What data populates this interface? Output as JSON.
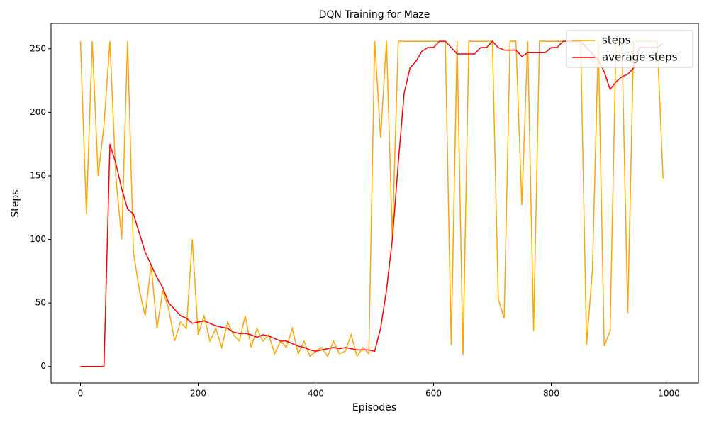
{
  "chart_data": {
    "type": "line",
    "title": "DQN Training for Maze",
    "x_label": "Episodes",
    "y_label": "Steps",
    "x": [
      0,
      10,
      20,
      30,
      40,
      50,
      60,
      70,
      80,
      90,
      100,
      110,
      120,
      130,
      140,
      150,
      160,
      170,
      180,
      190,
      200,
      210,
      220,
      230,
      240,
      250,
      260,
      270,
      280,
      290,
      300,
      310,
      320,
      330,
      340,
      350,
      360,
      370,
      380,
      390,
      400,
      410,
      420,
      430,
      440,
      450,
      460,
      470,
      480,
      490,
      500,
      510,
      520,
      530,
      540,
      550,
      560,
      570,
      580,
      590,
      600,
      610,
      620,
      630,
      640,
      650,
      660,
      670,
      680,
      690,
      700,
      710,
      720,
      730,
      740,
      750,
      760,
      770,
      780,
      790,
      800,
      810,
      820,
      830,
      840,
      850,
      860,
      870,
      880,
      890,
      900,
      910,
      920,
      930,
      940,
      950,
      960,
      970,
      980,
      990
    ],
    "series": [
      {
        "name": "steps",
        "color": "#ffa500",
        "values": [
          256,
          120,
          256,
          150,
          190,
          256,
          150,
          100,
          256,
          90,
          60,
          40,
          80,
          30,
          60,
          45,
          20,
          35,
          30,
          100,
          25,
          40,
          20,
          30,
          15,
          35,
          25,
          20,
          40,
          15,
          30,
          20,
          25,
          10,
          20,
          15,
          30,
          10,
          20,
          8,
          12,
          15,
          8,
          20,
          10,
          12,
          25,
          8,
          15,
          10,
          256,
          180,
          256,
          100,
          256,
          256,
          256,
          256,
          256,
          256,
          256,
          256,
          256,
          17,
          256,
          9,
          256,
          256,
          256,
          256,
          256,
          53,
          38,
          256,
          256,
          127,
          256,
          28,
          256,
          256,
          256,
          256,
          256,
          256,
          256,
          256,
          17,
          76,
          256,
          16,
          28,
          256,
          256,
          42,
          256,
          256,
          256,
          256,
          256,
          148
        ]
      },
      {
        "name": "average steps",
        "color": "#ff0000",
        "values": [
          0,
          0,
          0,
          0,
          0,
          175,
          160,
          140,
          124,
          120,
          105,
          90,
          80,
          70,
          62,
          50,
          45,
          40,
          38,
          34,
          35,
          36,
          34,
          32,
          31,
          30,
          27,
          26,
          26,
          25,
          23,
          25,
          24,
          22,
          20,
          20,
          18,
          16,
          15,
          13,
          12,
          13,
          14,
          15,
          14,
          15,
          14,
          13,
          13,
          13,
          12,
          30,
          60,
          100,
          160,
          215,
          235,
          240,
          248,
          251,
          251,
          256,
          256,
          251,
          246,
          246,
          246,
          246,
          251,
          251,
          256,
          251,
          249,
          249,
          249,
          244,
          247,
          247,
          247,
          247,
          251,
          251,
          256,
          256,
          256,
          256,
          251,
          246,
          241,
          232,
          218,
          224,
          228,
          230,
          235,
          251,
          251,
          251,
          251,
          254
        ]
      }
    ],
    "xlim": [
      -50,
      1050
    ],
    "ylim": [
      -13,
      270
    ],
    "xticks": [
      0,
      200,
      400,
      600,
      800,
      1000
    ],
    "yticks": [
      0,
      50,
      100,
      150,
      200,
      250
    ],
    "legend": "upper right"
  }
}
